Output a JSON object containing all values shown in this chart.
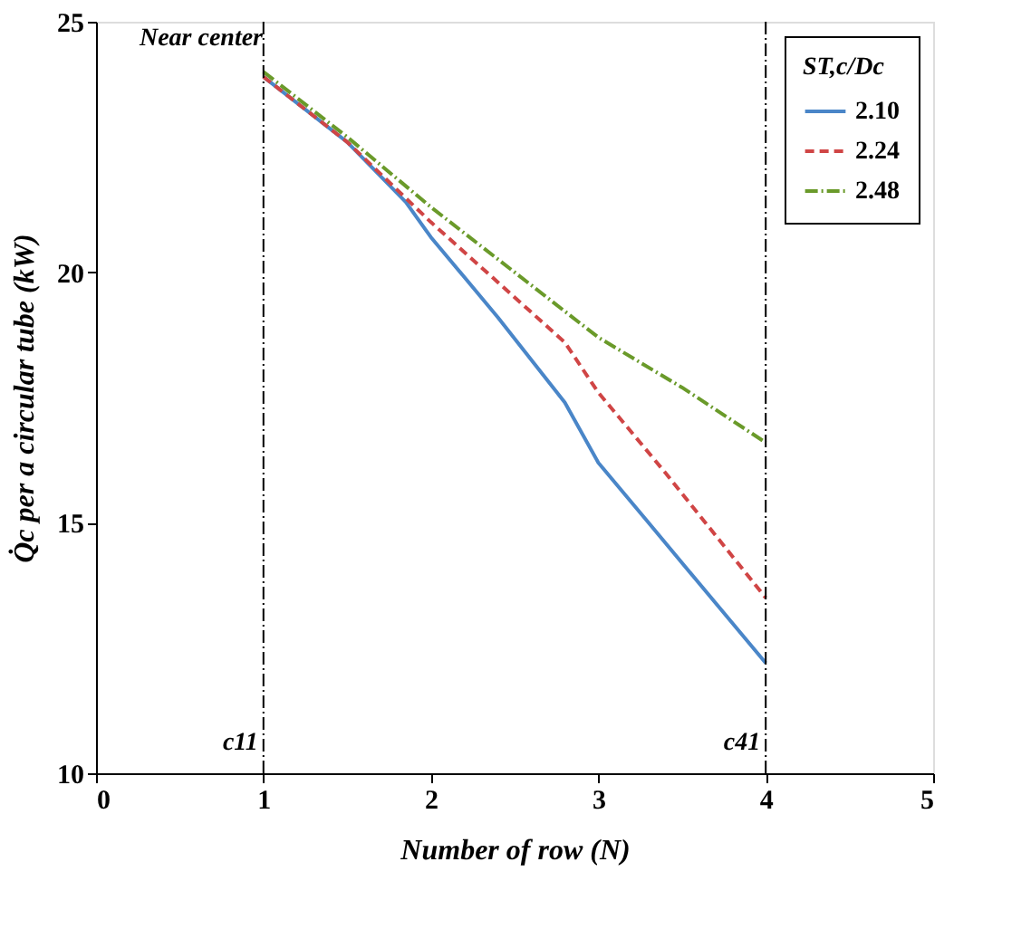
{
  "chart_data": {
    "type": "line",
    "xlabel": "Number of row (N)",
    "ylabel": "Q̇c per a circular tube (kW)",
    "legend_title": "ST,c/Dc",
    "xlim": [
      0,
      5
    ],
    "xticks": [
      0,
      1,
      2,
      3,
      4,
      5
    ],
    "ylim": [
      10,
      25
    ],
    "yticks": [
      10,
      15,
      20,
      25
    ],
    "grid": false,
    "legend": "top right",
    "marker": "none",
    "series": [
      {
        "name": "2.10",
        "color": "#4a86c8",
        "line_style": "solid",
        "x": [
          1,
          1.5,
          1.85,
          2,
          2.4,
          2.8,
          3,
          3.3,
          4
        ],
        "values": [
          23.9,
          22.6,
          21.4,
          20.7,
          19.1,
          17.4,
          16.2,
          15.0,
          12.2
        ]
      },
      {
        "name": "2.24",
        "color": "#d04545",
        "line_style": "dashed",
        "x": [
          1,
          1.5,
          2,
          2.4,
          2.8,
          3,
          3.4,
          4
        ],
        "values": [
          23.9,
          22.6,
          21.0,
          19.8,
          18.6,
          17.6,
          16.0,
          13.5
        ]
      },
      {
        "name": "2.48",
        "color": "#6a9a2a",
        "line_style": "dotted",
        "x": [
          1,
          1.5,
          2,
          2.5,
          3,
          3.5,
          4
        ],
        "values": [
          24.0,
          22.7,
          21.3,
          20.0,
          18.7,
          17.7,
          16.6
        ]
      }
    ],
    "ref_lines": [
      {
        "axis": "x",
        "value": 1,
        "label": "c11",
        "color": "#000000",
        "line_style": "dotted"
      },
      {
        "axis": "x",
        "value": 4,
        "label": "c41",
        "color": "#000000",
        "line_style": "dotted"
      }
    ],
    "annotations": [
      "Near center"
    ]
  }
}
